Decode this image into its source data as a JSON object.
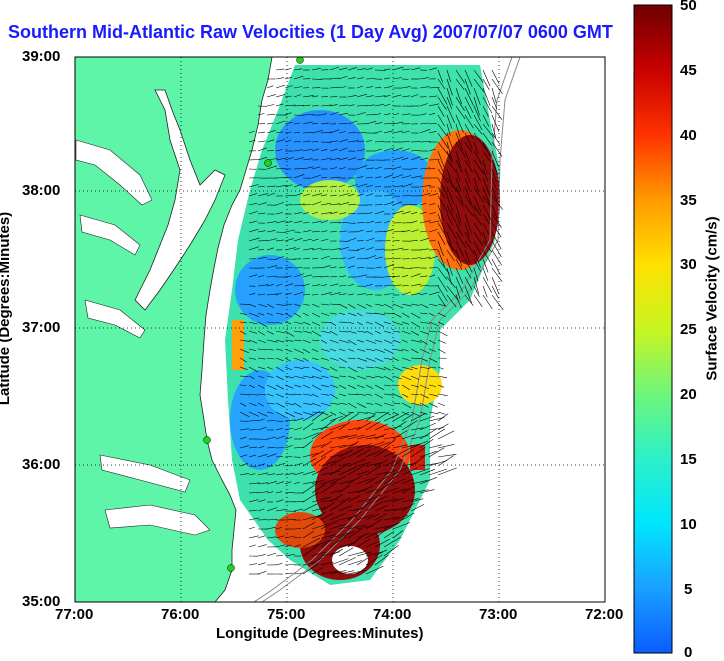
{
  "title": "Southern Mid-Atlantic Raw Velocities (1 Day Avg) 2007/07/07 0600 GMT",
  "x_axis": {
    "label": "Longitude (Degrees:Minutes)",
    "ticks": [
      "77:00",
      "76:00",
      "75:00",
      "74:00",
      "73:00",
      "72:00"
    ]
  },
  "y_axis": {
    "label": "Latitude (Degrees:Minutes)",
    "ticks": [
      "39:00",
      "38:00",
      "37:00",
      "36:00",
      "35:00"
    ]
  },
  "colorbar": {
    "label": "Surface Velocity (cm/s)",
    "ticks": [
      "50",
      "45",
      "40",
      "35",
      "30",
      "25",
      "20",
      "15",
      "10",
      "5",
      "0"
    ],
    "range": [
      0,
      50
    ]
  },
  "colors": {
    "land": "#5ef5a8",
    "title": "#1a1aff",
    "arrows": "#000000"
  }
}
